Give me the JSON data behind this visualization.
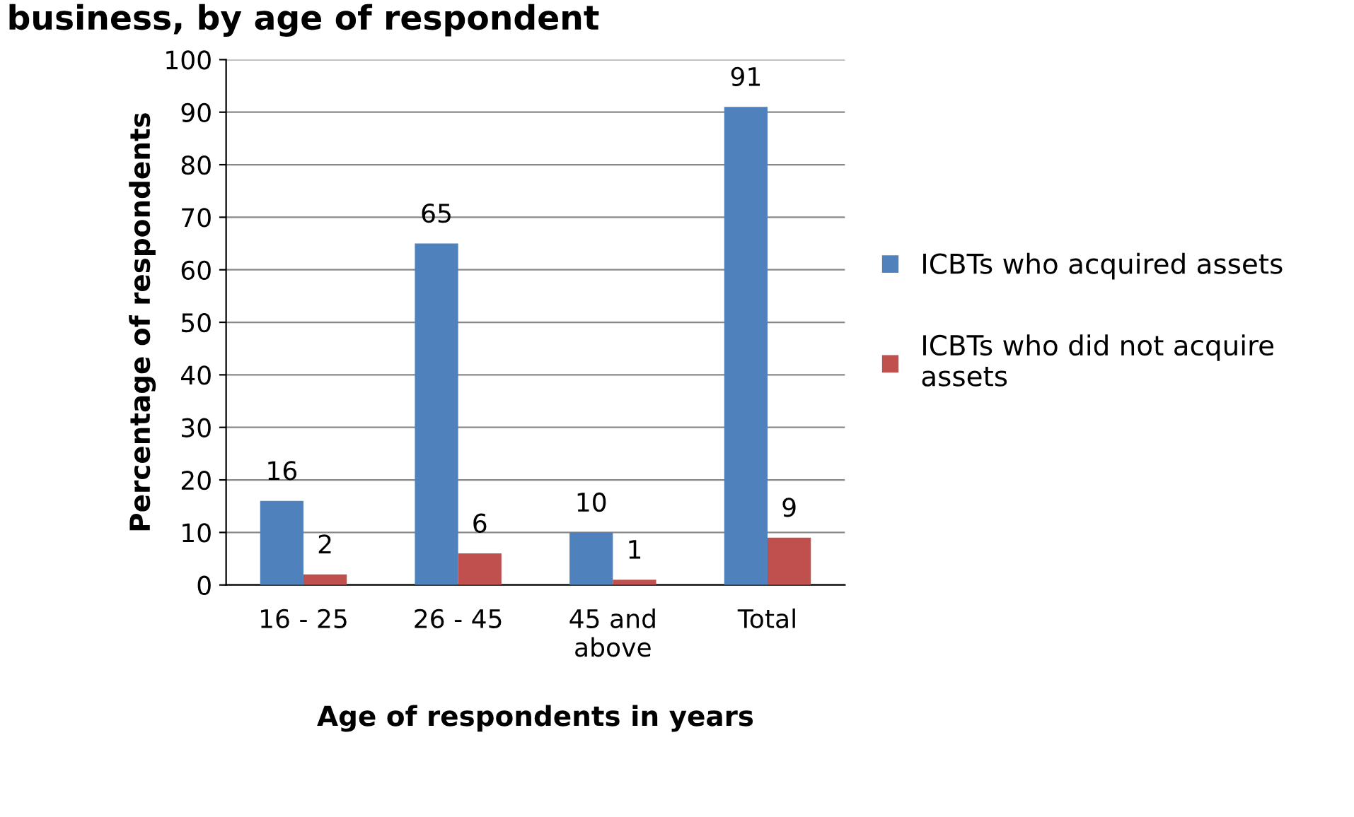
{
  "chart_data": {
    "type": "bar",
    "title": "business, by age of respondent",
    "xlabel": "Age of respondents in years",
    "ylabel": "Percentage of respondents",
    "categories": [
      "16 - 25",
      "26 - 45",
      "45 and\nabove",
      "Total"
    ],
    "series": [
      {
        "name": "ICBTs who acquired assets",
        "color": "#4f81bd",
        "values": [
          16,
          65,
          10,
          91
        ]
      },
      {
        "name": "ICBTs who did not acquire\nassets",
        "color": "#c0504d",
        "values": [
          2,
          6,
          1,
          9
        ]
      }
    ],
    "ylim": [
      0,
      100
    ],
    "yticks": [
      0,
      10,
      20,
      30,
      40,
      50,
      60,
      70,
      80,
      90,
      100
    ],
    "grid": "y",
    "legend": "right",
    "data_labels": true
  }
}
